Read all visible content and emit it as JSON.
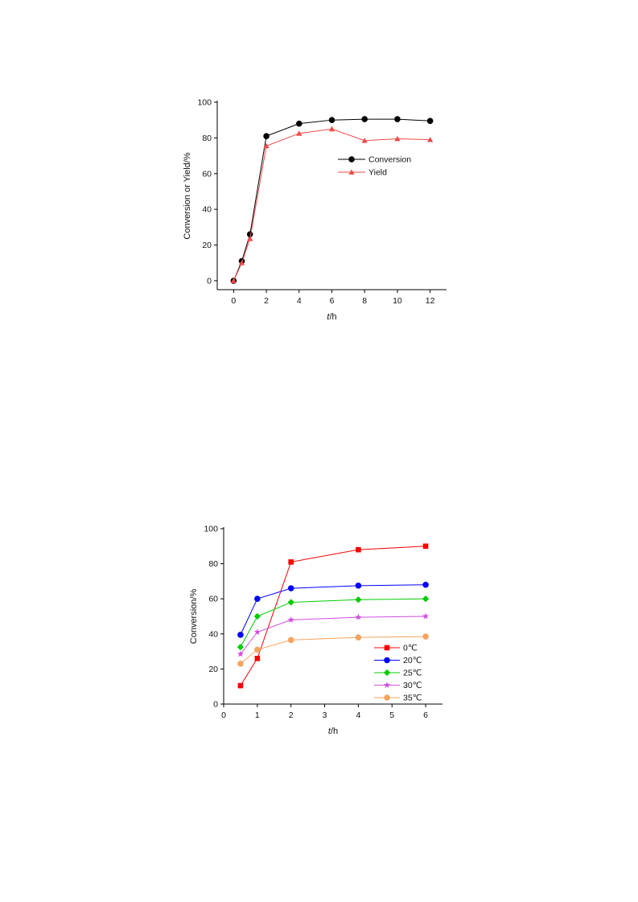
{
  "chart_data": [
    {
      "type": "line",
      "title": "",
      "xlabel_italic": "t",
      "xlabel_rest": "/h",
      "ylabel": "Conversion or Yield/%",
      "xlim": [
        -1,
        13
      ],
      "ylim": [
        -5,
        100
      ],
      "xticks": [
        0,
        2,
        4,
        6,
        8,
        10,
        12
      ],
      "yticks": [
        0,
        20,
        40,
        60,
        80,
        100
      ],
      "x": [
        0,
        0.5,
        1,
        2,
        4,
        6,
        8,
        10,
        12
      ],
      "legend_position": "right-middle",
      "series": [
        {
          "name": "Conversion",
          "color": "#000000",
          "marker": "circle",
          "values": [
            0,
            11,
            26,
            81,
            88,
            90,
            90.5,
            90.5,
            89.5
          ]
        },
        {
          "name": "Yield",
          "color": "#ef4a4a",
          "marker": "triangle",
          "values": [
            0,
            10,
            23.5,
            75.5,
            82.5,
            85,
            78.5,
            79.5,
            79
          ]
        }
      ]
    },
    {
      "type": "line",
      "title": "",
      "xlabel_italic": "t",
      "xlabel_rest": "/h",
      "ylabel": "Conversion/%",
      "xlim": [
        0,
        6.5
      ],
      "ylim": [
        0,
        100
      ],
      "xticks": [
        0,
        1,
        2,
        3,
        4,
        5,
        6
      ],
      "yticks": [
        0,
        20,
        40,
        60,
        80,
        100
      ],
      "x": [
        0.5,
        1,
        2,
        4,
        6
      ],
      "legend_position": "right-lower",
      "series": [
        {
          "name": "0℃",
          "color": "#ff0000",
          "marker": "square",
          "values": [
            10.5,
            26,
            81,
            88,
            90
          ]
        },
        {
          "name": "20℃",
          "color": "#0000ff",
          "marker": "circle",
          "values": [
            39.5,
            60,
            66,
            67.5,
            68
          ]
        },
        {
          "name": "25℃",
          "color": "#00cc00",
          "marker": "diamond",
          "values": [
            32.5,
            50,
            58,
            59.5,
            60
          ]
        },
        {
          "name": "30℃",
          "color": "#d24fe0",
          "marker": "star",
          "values": [
            28.5,
            41,
            48,
            49.5,
            50
          ]
        },
        {
          "name": "35℃",
          "color": "#f4a460",
          "marker": "circle",
          "values": [
            23,
            31,
            36.5,
            38,
            38.5
          ]
        }
      ]
    }
  ]
}
